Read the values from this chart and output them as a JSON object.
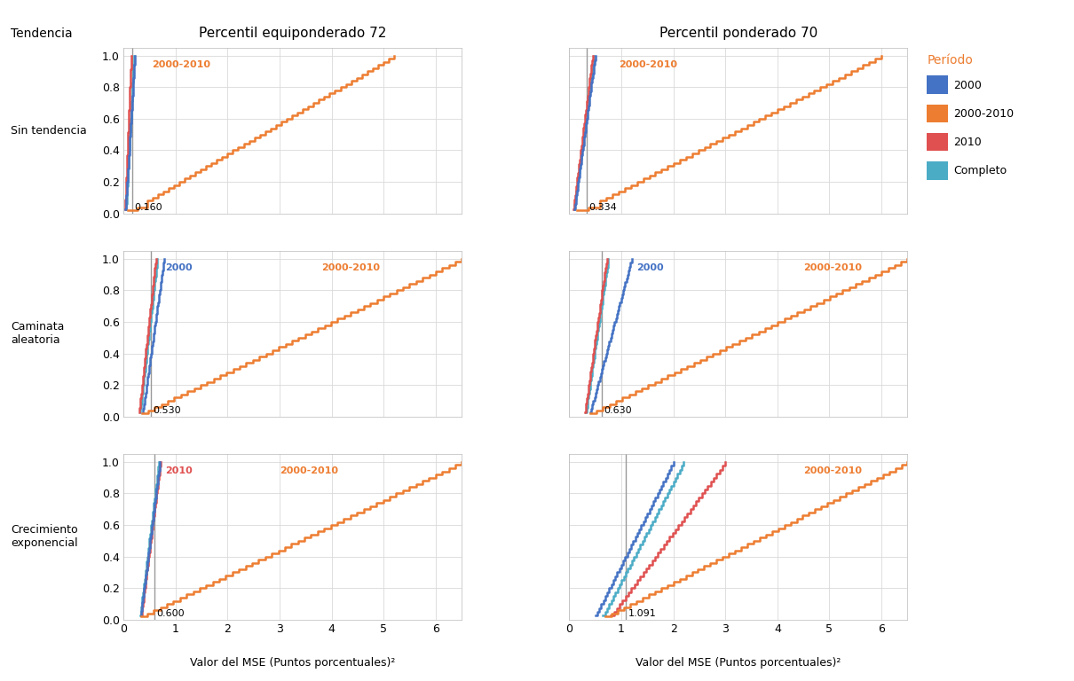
{
  "title_col1": "Percentil equiponderado 72",
  "title_col2": "Percentil ponderado 70",
  "row_labels": [
    "Sin tendencia",
    "Caminata\naleatoria",
    "Crecimiento\nexponencial"
  ],
  "xlabel": "Valor del MSE (Puntos porcentuales)²",
  "legend_title": "Período",
  "legend_labels": [
    "2000",
    "2000-2010",
    "2010",
    "Completo"
  ],
  "colors": {
    "2000": "#4472C4",
    "2000-2010": "#ED7D31",
    "2010": "#E05050",
    "Completo": "#4BACC6"
  },
  "vline_values": {
    "row0_col0": 0.16,
    "row0_col1": 0.334,
    "row1_col0": 0.53,
    "row1_col1": 0.63,
    "row2_col0": 0.6,
    "row2_col1": 1.091
  },
  "xlim": [
    0,
    6.5
  ],
  "ylim": [
    0.0,
    1.05
  ],
  "xticks": [
    0,
    1,
    2,
    3,
    4,
    5,
    6
  ],
  "yticks": [
    0.0,
    0.2,
    0.4,
    0.6,
    0.8,
    1.0
  ],
  "background_color": "#FFFFFF",
  "grid_color": "#D9D9D9"
}
